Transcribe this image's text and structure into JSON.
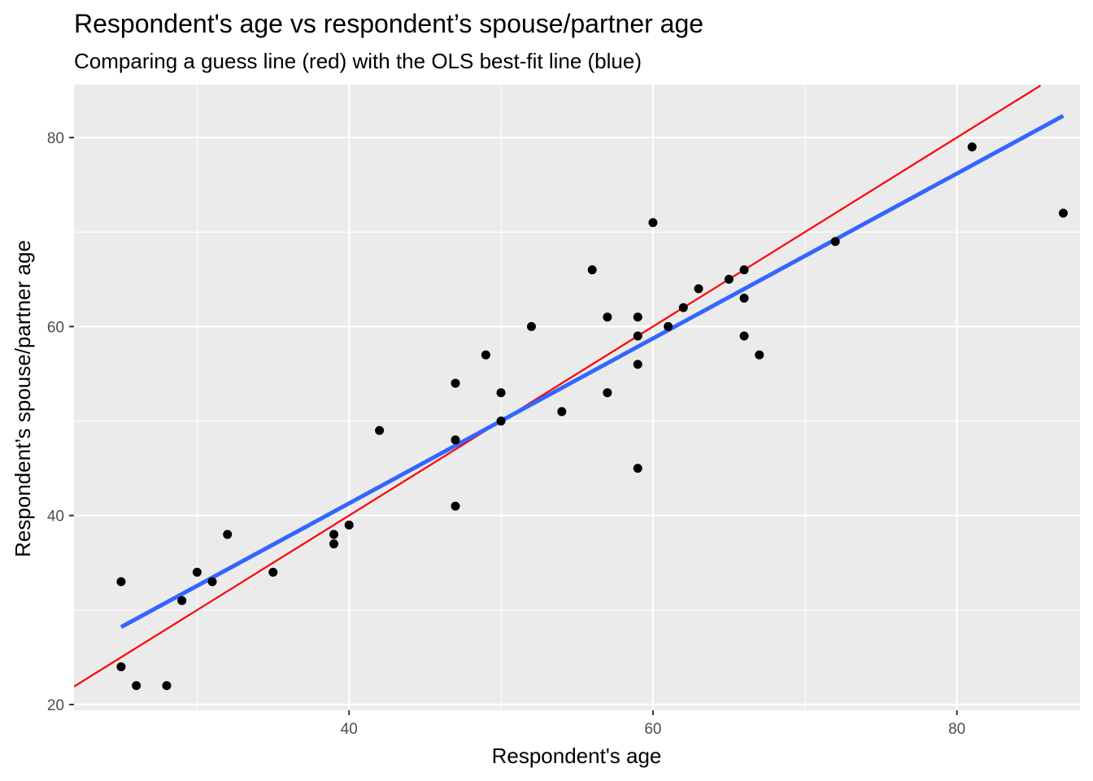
{
  "chart_data": {
    "type": "scatter",
    "title": "Respondent's age vs respondent’s spouse/partner age",
    "subtitle": "Comparing a guess line (red) with the OLS best-fit line (blue)",
    "xlabel": "Respondent's age",
    "ylabel": "Respondent’s spouse/partner age",
    "xlim": [
      21.9,
      88.1
    ],
    "ylim": [
      19.4,
      85.6
    ],
    "x_ticks": [
      40,
      60,
      80
    ],
    "y_ticks": [
      20,
      40,
      60,
      80
    ],
    "x_minor": [
      30,
      50,
      70
    ],
    "y_minor": [
      30,
      50,
      70
    ],
    "grid": true,
    "background": "#ebebeb",
    "points": [
      {
        "x": 25,
        "y": 33
      },
      {
        "x": 25,
        "y": 24
      },
      {
        "x": 26,
        "y": 22
      },
      {
        "x": 28,
        "y": 22
      },
      {
        "x": 29,
        "y": 31
      },
      {
        "x": 30,
        "y": 34
      },
      {
        "x": 31,
        "y": 33
      },
      {
        "x": 32,
        "y": 38
      },
      {
        "x": 35,
        "y": 34
      },
      {
        "x": 39,
        "y": 38
      },
      {
        "x": 39,
        "y": 37
      },
      {
        "x": 40,
        "y": 39
      },
      {
        "x": 42,
        "y": 49
      },
      {
        "x": 47,
        "y": 54
      },
      {
        "x": 47,
        "y": 48
      },
      {
        "x": 47,
        "y": 41
      },
      {
        "x": 49,
        "y": 57
      },
      {
        "x": 50,
        "y": 53
      },
      {
        "x": 50,
        "y": 50
      },
      {
        "x": 52,
        "y": 60
      },
      {
        "x": 54,
        "y": 51
      },
      {
        "x": 56,
        "y": 66
      },
      {
        "x": 57,
        "y": 61
      },
      {
        "x": 57,
        "y": 53
      },
      {
        "x": 59,
        "y": 61
      },
      {
        "x": 59,
        "y": 59
      },
      {
        "x": 59,
        "y": 56
      },
      {
        "x": 59,
        "y": 45
      },
      {
        "x": 60,
        "y": 71
      },
      {
        "x": 61,
        "y": 60
      },
      {
        "x": 62,
        "y": 62
      },
      {
        "x": 63,
        "y": 64
      },
      {
        "x": 65,
        "y": 65
      },
      {
        "x": 66,
        "y": 66
      },
      {
        "x": 66,
        "y": 63
      },
      {
        "x": 66,
        "y": 59
      },
      {
        "x": 67,
        "y": 57
      },
      {
        "x": 72,
        "y": 69
      },
      {
        "x": 81,
        "y": 79
      },
      {
        "x": 87,
        "y": 72
      }
    ],
    "guess_line": {
      "color": "#ff0000",
      "x": [
        21.9,
        85.5
      ],
      "y": [
        21.9,
        85.5
      ]
    },
    "ols_line": {
      "color": "#3366ff",
      "x": [
        25,
        87
      ],
      "y": [
        28.2,
        82.3
      ]
    },
    "point_color": "#000000"
  }
}
